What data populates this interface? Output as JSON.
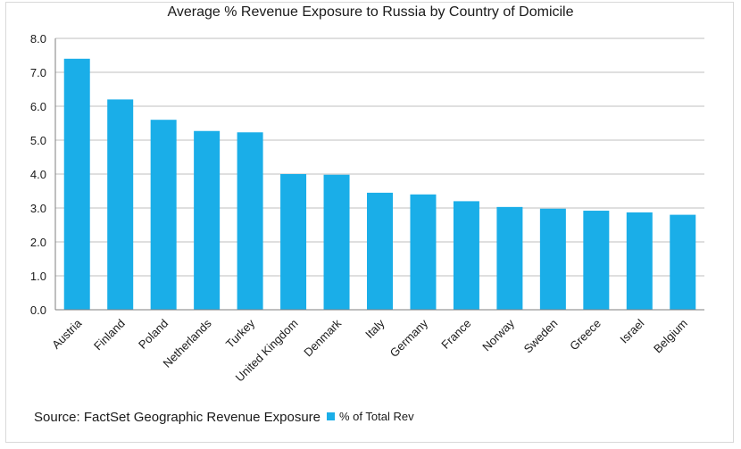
{
  "chart_data": {
    "type": "bar",
    "title": "Average % Revenue Exposure to Russia by Country of Domicile",
    "categories": [
      "Austria",
      "Finland",
      "Poland",
      "Netherlands",
      "Turkey",
      "United Kingdom",
      "Denmark",
      "Italy",
      "Germany",
      "France",
      "Norway",
      "Sweden",
      "Greece",
      "Israel",
      "Belgium"
    ],
    "series": [
      {
        "name": "% of Total Rev",
        "values": [
          7.4,
          6.2,
          5.6,
          5.27,
          5.23,
          4.0,
          3.98,
          3.45,
          3.4,
          3.2,
          3.03,
          2.98,
          2.92,
          2.87,
          2.8
        ],
        "color": "#1aaee8"
      }
    ],
    "ylim": [
      0,
      8
    ],
    "yticks": [
      "0.0",
      "1.0",
      "2.0",
      "3.0",
      "4.0",
      "5.0",
      "6.0",
      "7.0",
      "8.0"
    ],
    "grid": true,
    "legend_position": "bottom"
  },
  "source": "Source: FactSet Geographic Revenue Exposure",
  "colors": {
    "bar": "#1aaee8",
    "grid": "#bfbfbf",
    "axis": "#7f7f7f",
    "text": "#1a1a1a"
  }
}
